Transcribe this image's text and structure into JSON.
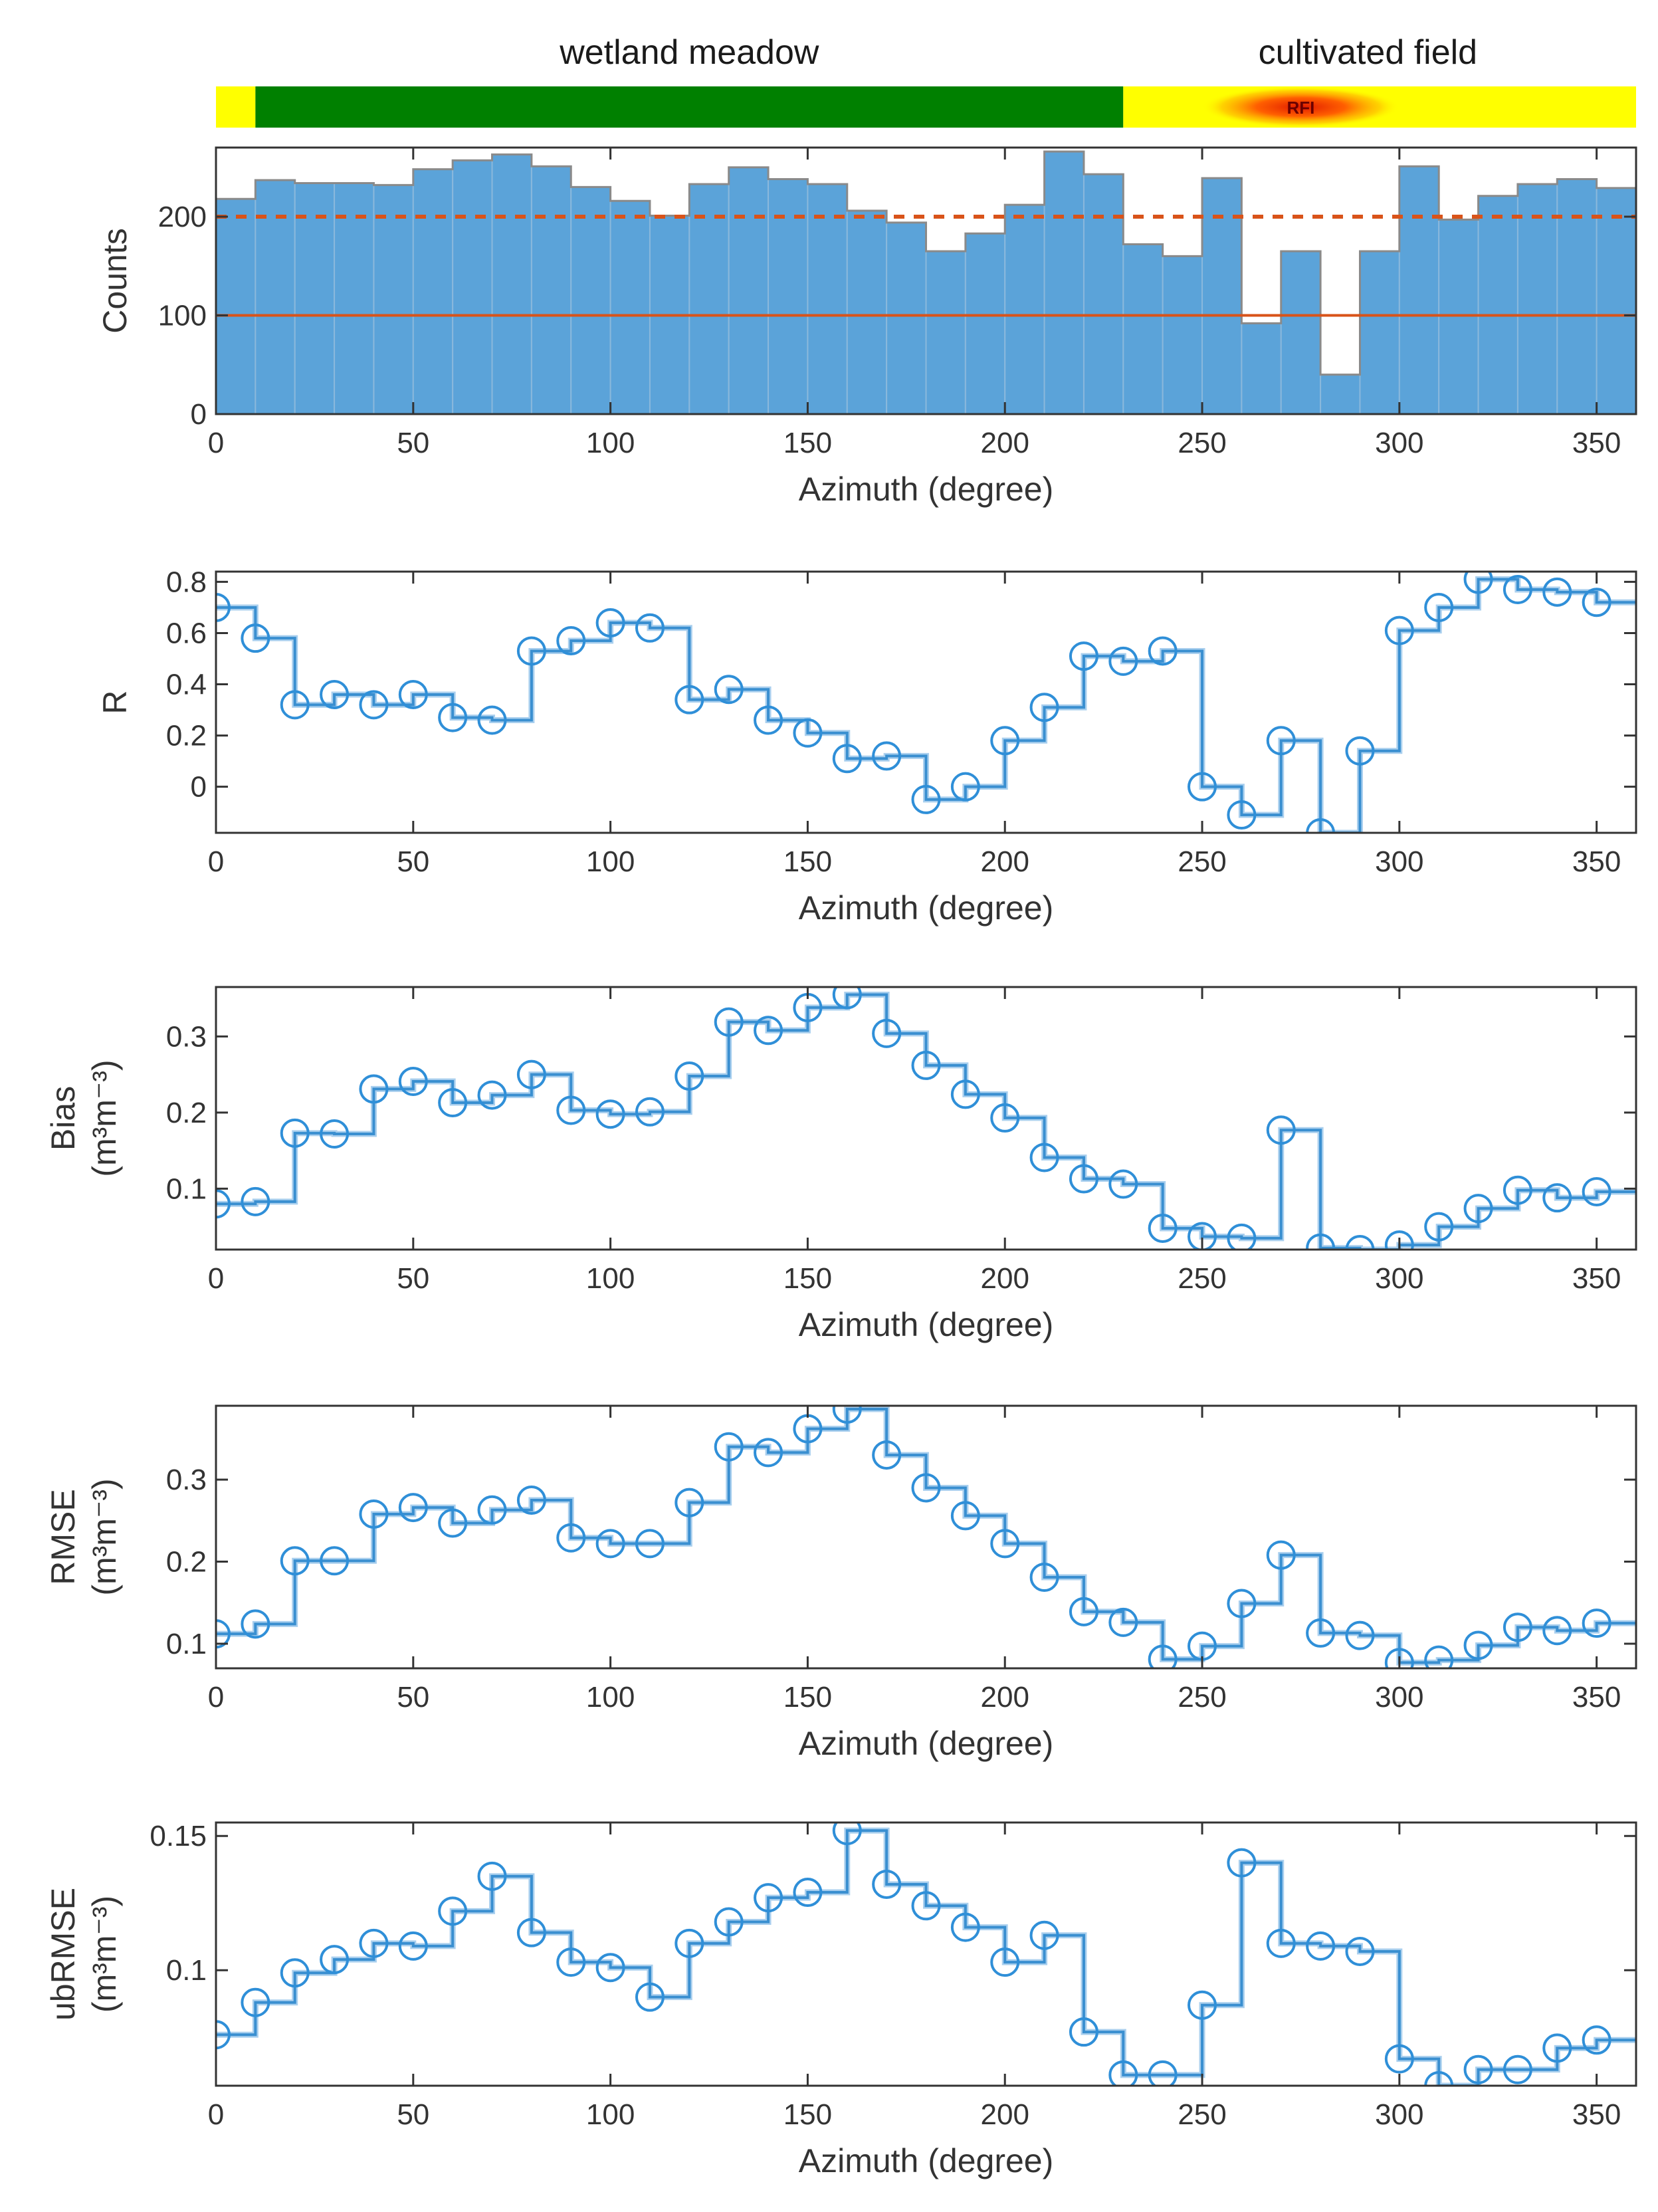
{
  "landcover": {
    "labels": [
      {
        "text": "wetland meadow",
        "x": 120
      },
      {
        "text": "cultivated field",
        "x": 292
      }
    ],
    "segments": [
      {
        "from": 0,
        "to": 10,
        "color": "#ffff00"
      },
      {
        "from": 10,
        "to": 230,
        "color": "#008000"
      },
      {
        "from": 230,
        "to": 360,
        "color": "#ffff00"
      }
    ],
    "rfi": {
      "label": "RFI",
      "from": 250,
      "to": 300,
      "center": 275,
      "color": "#ff3300"
    }
  },
  "colors": {
    "bar_fill": "#5ba3d9",
    "bar_edge": "#1f6fb0",
    "step_line": "#3a8fd0",
    "marker": "#2f8fd8",
    "threshold": "#d95319",
    "axis": "#333333"
  },
  "chart_data": [
    {
      "type": "bar",
      "id": "counts",
      "ylabel": [
        "Counts"
      ],
      "xlabel": "Azimuth (degree)",
      "xlim": [
        0,
        360
      ],
      "ylim": [
        0,
        270
      ],
      "xticks": [
        0,
        50,
        100,
        150,
        200,
        250,
        300,
        350
      ],
      "yticks": [
        0,
        100,
        200
      ],
      "ytick_labels": [
        "0",
        "100",
        "200"
      ],
      "bin_width": 10,
      "x": [
        0,
        10,
        20,
        30,
        40,
        50,
        60,
        70,
        80,
        90,
        100,
        110,
        120,
        130,
        140,
        150,
        160,
        170,
        180,
        190,
        200,
        210,
        220,
        230,
        240,
        250,
        260,
        270,
        280,
        290,
        300,
        310,
        320,
        330,
        340,
        350
      ],
      "values": [
        218,
        237,
        234,
        234,
        232,
        248,
        257,
        263,
        251,
        230,
        216,
        201,
        233,
        250,
        238,
        233,
        206,
        194,
        165,
        183,
        212,
        266,
        243,
        172,
        160,
        239,
        92,
        165,
        40,
        165,
        251,
        197,
        221,
        233,
        238,
        229
      ],
      "thresholds": [
        {
          "value": 200,
          "style": "dashed"
        },
        {
          "value": 100,
          "style": "solid"
        }
      ]
    },
    {
      "type": "line",
      "id": "R",
      "ylabel": [
        "R"
      ],
      "xlabel": "Azimuth (degree)",
      "xlim": [
        0,
        360
      ],
      "ylim": [
        -0.18,
        0.84
      ],
      "xticks": [
        0,
        50,
        100,
        150,
        200,
        250,
        300,
        350
      ],
      "yticks": [
        0,
        0.2,
        0.4,
        0.6,
        0.8
      ],
      "ytick_labels": [
        "0",
        "0.2",
        "0.4",
        "0.6",
        "0.8"
      ],
      "x": [
        0,
        10,
        20,
        30,
        40,
        50,
        60,
        70,
        80,
        90,
        100,
        110,
        120,
        130,
        140,
        150,
        160,
        170,
        180,
        190,
        200,
        210,
        220,
        230,
        240,
        250,
        260,
        270,
        280,
        290,
        300,
        310,
        320,
        330,
        340,
        350
      ],
      "values": [
        0.7,
        0.58,
        0.32,
        0.36,
        0.32,
        0.36,
        0.27,
        0.26,
        0.53,
        0.57,
        0.64,
        0.62,
        0.34,
        0.38,
        0.26,
        0.21,
        0.11,
        0.12,
        -0.05,
        0.0,
        0.18,
        0.31,
        0.51,
        0.49,
        0.53,
        0.0,
        -0.11,
        0.18,
        -0.18,
        0.14,
        0.61,
        0.7,
        0.81,
        0.77,
        0.76,
        0.72
      ]
    },
    {
      "type": "line",
      "id": "bias",
      "ylabel": [
        "Bias",
        "(m³m⁻³)"
      ],
      "xlabel": "Azimuth (degree)",
      "xlim": [
        0,
        360
      ],
      "ylim": [
        0.02,
        0.365
      ],
      "xticks": [
        0,
        50,
        100,
        150,
        200,
        250,
        300,
        350
      ],
      "yticks": [
        0.1,
        0.2,
        0.3
      ],
      "ytick_labels": [
        "0.1",
        "0.2",
        "0.3"
      ],
      "x": [
        0,
        10,
        20,
        30,
        40,
        50,
        60,
        70,
        80,
        90,
        100,
        110,
        120,
        130,
        140,
        150,
        160,
        170,
        180,
        190,
        200,
        210,
        220,
        230,
        240,
        250,
        260,
        270,
        280,
        290,
        300,
        310,
        320,
        330,
        340,
        350
      ],
      "values": [
        0.08,
        0.083,
        0.173,
        0.172,
        0.231,
        0.241,
        0.213,
        0.223,
        0.25,
        0.203,
        0.198,
        0.201,
        0.248,
        0.319,
        0.308,
        0.338,
        0.355,
        0.304,
        0.262,
        0.224,
        0.193,
        0.141,
        0.113,
        0.106,
        0.048,
        0.037,
        0.035,
        0.177,
        0.022,
        0.02,
        0.026,
        0.05,
        0.074,
        0.098,
        0.088,
        0.096
      ]
    },
    {
      "type": "line",
      "id": "rmse",
      "ylabel": [
        "RMSE",
        "(m³m⁻³)"
      ],
      "xlabel": "Azimuth (degree)",
      "xlim": [
        0,
        360
      ],
      "ylim": [
        0.07,
        0.39
      ],
      "xticks": [
        0,
        50,
        100,
        150,
        200,
        250,
        300,
        350
      ],
      "yticks": [
        0.1,
        0.2,
        0.3
      ],
      "ytick_labels": [
        "0.1",
        "0.2",
        "0.3"
      ],
      "x": [
        0,
        10,
        20,
        30,
        40,
        50,
        60,
        70,
        80,
        90,
        100,
        110,
        120,
        130,
        140,
        150,
        160,
        170,
        180,
        190,
        200,
        210,
        220,
        230,
        240,
        250,
        260,
        270,
        280,
        290,
        300,
        310,
        320,
        330,
        340,
        350
      ],
      "values": [
        0.112,
        0.124,
        0.201,
        0.201,
        0.258,
        0.266,
        0.247,
        0.263,
        0.275,
        0.229,
        0.222,
        0.222,
        0.272,
        0.34,
        0.333,
        0.362,
        0.386,
        0.33,
        0.29,
        0.256,
        0.222,
        0.181,
        0.139,
        0.126,
        0.081,
        0.097,
        0.149,
        0.208,
        0.113,
        0.11,
        0.077,
        0.08,
        0.098,
        0.12,
        0.116,
        0.125
      ]
    },
    {
      "type": "line",
      "id": "ubrmse",
      "ylabel": [
        "ubRMSE",
        "(m³m⁻³)"
      ],
      "xlabel": "Azimuth (degree)",
      "xlim": [
        0,
        360
      ],
      "ylim": [
        0.057,
        0.155
      ],
      "xticks": [
        0,
        50,
        100,
        150,
        200,
        250,
        300,
        350
      ],
      "yticks": [
        0.1,
        0.15
      ],
      "ytick_labels": [
        "0.1",
        "0.15"
      ],
      "x": [
        0,
        10,
        20,
        30,
        40,
        50,
        60,
        70,
        80,
        90,
        100,
        110,
        120,
        130,
        140,
        150,
        160,
        170,
        180,
        190,
        200,
        210,
        220,
        230,
        240,
        250,
        260,
        270,
        280,
        290,
        300,
        310,
        320,
        330,
        340,
        350
      ],
      "values": [
        0.076,
        0.088,
        0.099,
        0.104,
        0.11,
        0.109,
        0.122,
        0.135,
        0.114,
        0.103,
        0.101,
        0.09,
        0.11,
        0.118,
        0.127,
        0.129,
        0.152,
        0.132,
        0.124,
        0.116,
        0.103,
        0.113,
        0.077,
        0.061,
        0.061,
        0.087,
        0.14,
        0.11,
        0.109,
        0.107,
        0.067,
        0.057,
        0.063,
        0.063,
        0.071,
        0.074
      ]
    }
  ]
}
